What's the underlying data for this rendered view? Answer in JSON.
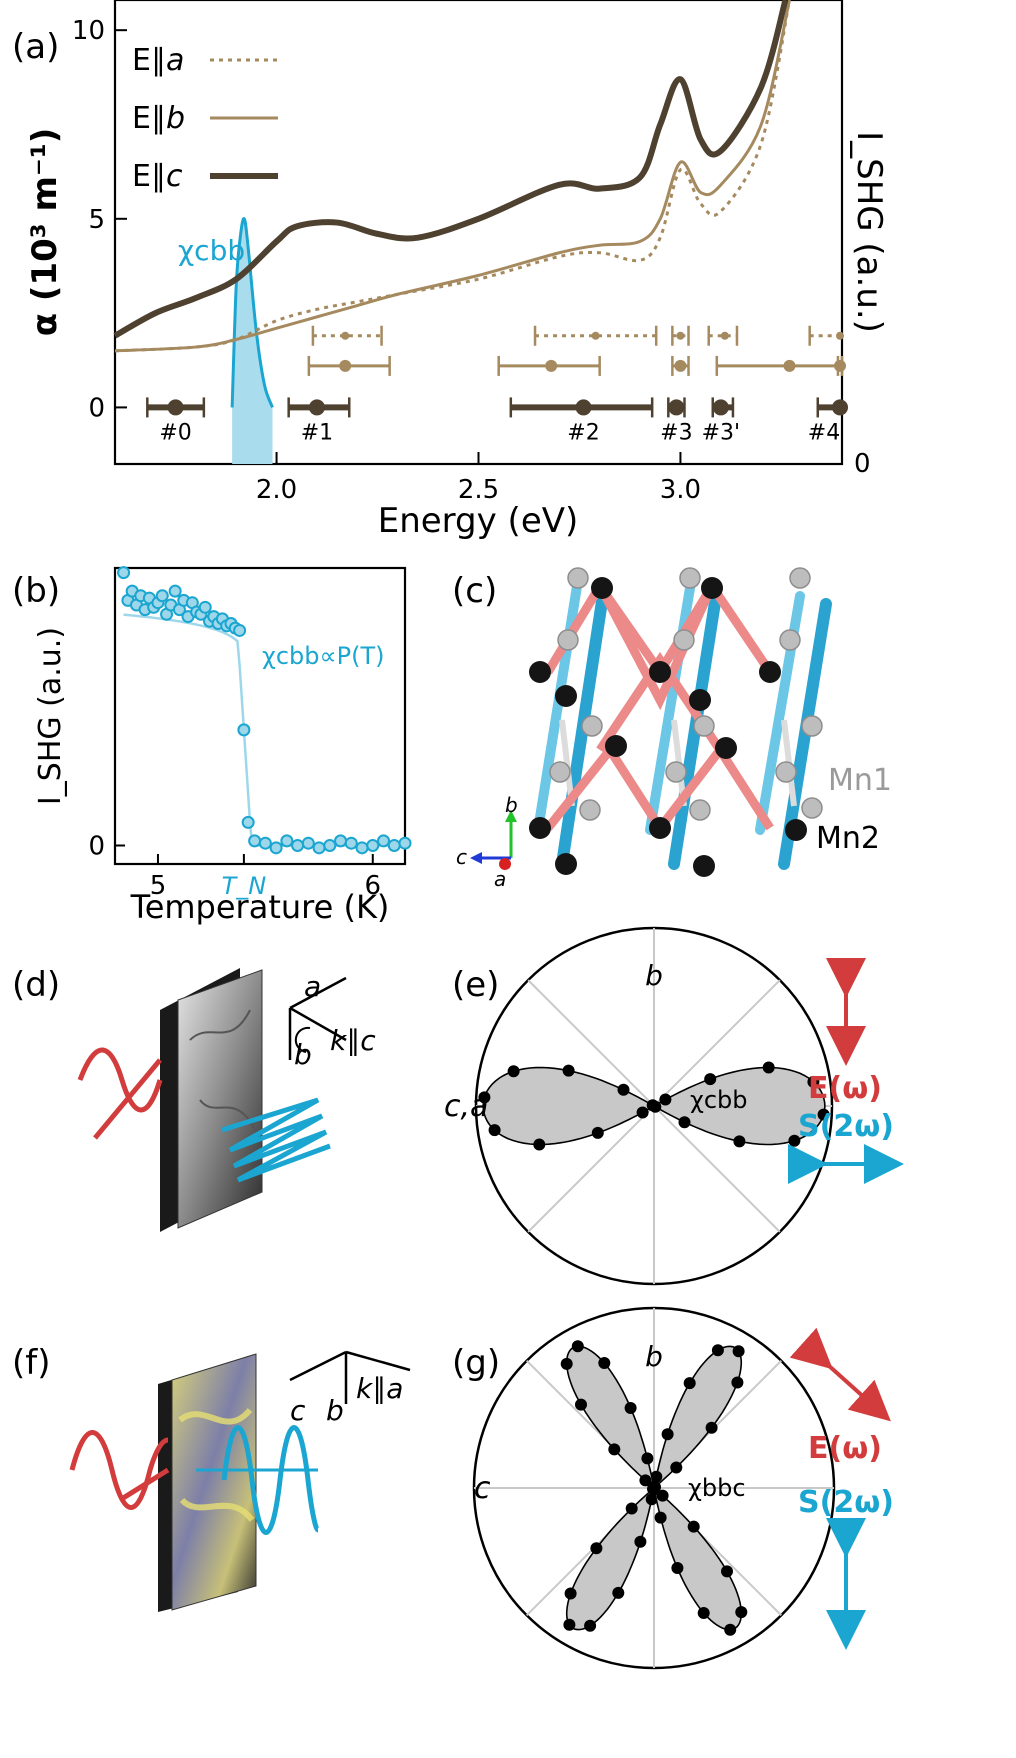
{
  "colors": {
    "light_brown": "#a58a5f",
    "dark_brown": "#4e4130",
    "cyan": "#1aa6d1",
    "cyan_fill": "#a9dcec",
    "red": "#d23c3c",
    "pink_bond": "#ec8a8a",
    "grey_ball": "#bdbdbd",
    "black_ball": "#151515",
    "polar_fill": "#c8c8c8"
  },
  "panels": {
    "a": "(a)",
    "b": "(b)",
    "c": "(c)",
    "d": "(d)",
    "e": "(e)",
    "f": "(f)",
    "g": "(g)"
  },
  "chart_data": [
    {
      "id": "a",
      "type": "line",
      "xlabel": "Energy (eV)",
      "ylabel_left": "α (10³ m⁻¹)",
      "ylabel_right": "I_SHG (a.u.)",
      "xlim": [
        1.6,
        3.4
      ],
      "ylim": [
        -1.5,
        10.8
      ],
      "xticks": [
        2.0,
        2.5,
        3.0
      ],
      "xtick_labels": [
        "2.0",
        "2.5",
        "3.0"
      ],
      "yticks": [
        0,
        5,
        10
      ],
      "ytick_labels": [
        "0",
        "5",
        "10"
      ],
      "right_tick_label": "0",
      "legend": [
        {
          "label": "E∥",
          "axis": "a",
          "style": "dotted"
        },
        {
          "label": "E∥",
          "axis": "b",
          "style": "solid-thin"
        },
        {
          "label": "E∥",
          "axis": "c",
          "style": "solid-thick"
        }
      ],
      "series": [
        {
          "name": "E||a",
          "x": [
            1.6,
            1.8,
            1.9,
            2.0,
            2.1,
            2.2,
            2.3,
            2.5,
            2.7,
            2.8,
            2.9,
            2.95,
            3.0,
            3.05,
            3.1,
            3.2,
            3.27
          ],
          "y": [
            1.5,
            1.6,
            1.8,
            2.3,
            2.6,
            2.8,
            3.0,
            3.4,
            4.0,
            4.1,
            3.9,
            4.5,
            6.3,
            5.4,
            5.2,
            7.0,
            10.8
          ]
        },
        {
          "name": "E||b",
          "x": [
            1.6,
            1.8,
            1.9,
            2.0,
            2.1,
            2.2,
            2.3,
            2.5,
            2.7,
            2.8,
            2.9,
            2.95,
            3.0,
            3.05,
            3.1,
            3.2,
            3.27
          ],
          "y": [
            1.5,
            1.6,
            1.8,
            2.1,
            2.4,
            2.7,
            3.0,
            3.5,
            4.1,
            4.3,
            4.4,
            5.0,
            6.5,
            5.7,
            5.9,
            7.5,
            10.8
          ]
        },
        {
          "name": "E||c",
          "x": [
            1.6,
            1.7,
            1.8,
            1.9,
            2.0,
            2.05,
            2.15,
            2.25,
            2.35,
            2.5,
            2.7,
            2.8,
            2.9,
            2.95,
            3.0,
            3.05,
            3.1,
            3.2,
            3.26
          ],
          "y": [
            1.9,
            2.5,
            2.9,
            3.4,
            4.4,
            4.8,
            4.9,
            4.6,
            4.5,
            5.0,
            5.9,
            5.8,
            6.1,
            7.5,
            8.7,
            7.1,
            6.8,
            8.5,
            10.8
          ]
        },
        {
          "name": "χcbb",
          "x": [
            1.89,
            1.9,
            1.91,
            1.92,
            1.93,
            1.95,
            1.97,
            1.99
          ],
          "y": [
            0,
            3.2,
            4.5,
            5.0,
            4.2,
            2.0,
            0.6,
            0
          ]
        }
      ],
      "peak_label": "χcbb",
      "transitions": [
        {
          "label": "#0",
          "c": [
            1.75,
            1.68,
            1.82
          ]
        },
        {
          "label": "#1",
          "c": [
            2.1,
            2.03,
            2.18
          ],
          "b": [
            2.17,
            2.08,
            2.28
          ],
          "a": [
            2.17,
            2.09,
            2.26
          ]
        },
        {
          "label": "#2",
          "c": [
            2.76,
            2.58,
            2.93
          ],
          "b": [
            2.68,
            2.55,
            2.8
          ],
          "a": [
            2.79,
            2.64,
            2.94
          ]
        },
        {
          "label": "#3",
          "c": [
            2.99,
            2.97,
            3.01
          ],
          "b": [
            3.0,
            2.98,
            3.02
          ],
          "a": [
            3.0,
            2.98,
            3.02
          ]
        },
        {
          "label": "#3'",
          "c": [
            3.1,
            3.08,
            3.13
          ],
          "b": [
            3.27,
            3.09,
            3.4
          ],
          "a": [
            3.11,
            3.07,
            3.14
          ]
        },
        {
          "label": "#4",
          "c": [
            3.4,
            3.34,
            3.42
          ],
          "b": [
            3.4,
            3.39,
            3.42
          ],
          "a": [
            3.4,
            3.32,
            3.42
          ]
        }
      ]
    },
    {
      "id": "b",
      "type": "scatter",
      "xlabel": "Temperature (K)",
      "ylabel": "I_SHG (a.u.)",
      "xlim": [
        4.8,
        6.15
      ],
      "ylim": [
        -0.08,
        1.2
      ],
      "xticks": [
        5,
        6
      ],
      "xtick_labels": [
        "5",
        "6"
      ],
      "tn_label": "T_N",
      "tn_value": 5.4,
      "yticks": [
        0
      ],
      "ytick_labels": [
        "0"
      ],
      "annotation": "χcbb∝P(T)",
      "points_high_x": [
        4.84,
        4.86,
        4.88,
        4.9,
        4.92,
        4.94,
        4.96,
        4.98,
        5.0,
        5.02,
        5.04,
        5.06,
        5.08,
        5.1,
        5.12,
        5.14,
        5.16,
        5.18,
        5.2,
        5.22,
        5.24,
        5.26,
        5.28,
        5.3,
        5.32,
        5.34,
        5.36,
        5.38
      ],
      "points_high_y": [
        1.18,
        1.06,
        1.1,
        1.04,
        1.08,
        1.02,
        1.07,
        1.03,
        1.05,
        1.08,
        1.0,
        1.04,
        1.1,
        1.02,
        1.06,
        0.99,
        1.05,
        1.01,
        1.0,
        1.03,
        0.97,
        0.99,
        0.96,
        0.98,
        0.95,
        0.96,
        0.94,
        0.93
      ],
      "points_low_x": [
        5.4,
        5.42,
        5.45,
        5.5,
        5.55,
        5.6,
        5.65,
        5.7,
        5.75,
        5.8,
        5.85,
        5.9,
        5.95,
        6.0,
        6.05,
        6.1,
        6.15
      ],
      "points_low_y": [
        0.5,
        0.1,
        0.02,
        0.01,
        -0.01,
        0.02,
        0.0,
        0.01,
        -0.01,
        0.0,
        0.02,
        0.01,
        -0.01,
        0.0,
        0.02,
        0.0,
        0.01
      ]
    },
    {
      "id": "e",
      "type": "polar",
      "label_top": "b",
      "label_left": "c,a",
      "lobe_label": "χcbb",
      "lobe_angles_deg": [
        0,
        180
      ],
      "arrow_E": "E(ω)",
      "arrow_S": "S(2ω)"
    },
    {
      "id": "g",
      "type": "polar",
      "label_top": "b",
      "label_left": "c",
      "lobe_label": "χbbc",
      "lobe_angles_deg": [
        60,
        120,
        240,
        300
      ],
      "arrow_E": "E(ω)",
      "arrow_S": "S(2ω)"
    }
  ],
  "structure": {
    "label_mn1": "Mn1",
    "label_mn2": "Mn2",
    "axis_b": "b",
    "axis_c": "c",
    "axis_a": "a"
  },
  "geometry_d": {
    "a": "a",
    "b": "b",
    "k": "k∥c"
  },
  "geometry_f": {
    "c": "c",
    "b": "b",
    "k": "k∥a"
  }
}
